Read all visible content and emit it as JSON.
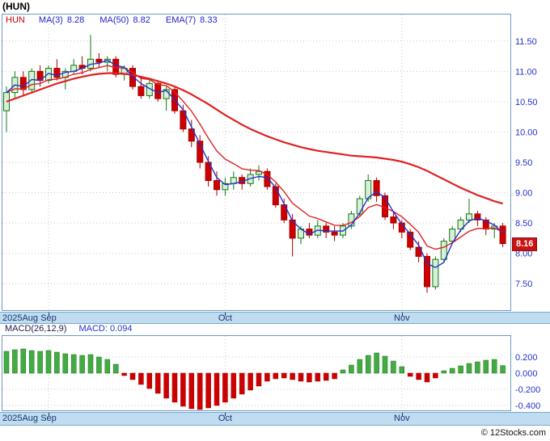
{
  "header": {
    "symbol_title": "(HUN)"
  },
  "legend": {
    "symbol": "HUN",
    "items": [
      {
        "label": "MA(3)",
        "value": "8.28"
      },
      {
        "label": "MA(50)",
        "value": "8.82"
      },
      {
        "label": "EMA(7)",
        "value": "8.33"
      }
    ]
  },
  "price_badge": {
    "value": "8.16"
  },
  "macd_header": {
    "title": "MACD(26,12,9)",
    "value_text": "MACD: 0.094"
  },
  "footer": {
    "credit": "© 12Stocks.com"
  },
  "colors": {
    "frame": "#6f9cc0",
    "grid": "#c8c8c8",
    "axis_text": "#2233cc",
    "band_bg": "#bfdcf0",
    "band_text": "#14366e",
    "up_stroke": "#117711",
    "up_fill": "#d8efd8",
    "down_stroke": "#aa0000",
    "down_fill": "#cc0000",
    "ma3": "#2233cc",
    "ema7": "#dd2222",
    "ma50": "#e02020",
    "macd_up": "#44aa44",
    "macd_down": "#cc0000",
    "badge_bg": "#cc1111"
  },
  "chart_data": {
    "type": "candlestick",
    "symbol": "HUN",
    "panels": [
      "price",
      "macd"
    ],
    "x_axis": {
      "labels": [
        {
          "text": "2025Aug",
          "index": 0,
          "align": "left"
        },
        {
          "text": "Sep",
          "index": 5,
          "tick": true,
          "grid": true
        },
        {
          "text": "Oct",
          "index": 26,
          "tick": true,
          "grid": true
        },
        {
          "text": "Nov",
          "index": 47,
          "tick": true,
          "grid": true
        }
      ]
    },
    "price": {
      "ylim": [
        7.05,
        11.95
      ],
      "ticks": [
        11.5,
        11.0,
        10.5,
        10.0,
        9.5,
        9.0,
        8.5,
        8.0,
        7.5
      ],
      "last_close": 8.16,
      "candles": [
        [
          10.35,
          10.75,
          10.0,
          10.65
        ],
        [
          10.65,
          11.0,
          10.55,
          10.9
        ],
        [
          10.9,
          11.0,
          10.6,
          10.7
        ],
        [
          10.7,
          11.05,
          10.65,
          11.0
        ],
        [
          11.0,
          11.1,
          10.75,
          10.85
        ],
        [
          10.85,
          11.1,
          10.8,
          11.05
        ],
        [
          11.05,
          11.2,
          10.85,
          10.9
        ],
        [
          10.9,
          11.05,
          10.7,
          11.0
        ],
        [
          11.0,
          11.2,
          10.95,
          11.1
        ],
        [
          11.1,
          11.25,
          10.95,
          11.05
        ],
        [
          11.05,
          11.6,
          11.0,
          11.2
        ],
        [
          11.2,
          11.3,
          11.05,
          11.15
        ],
        [
          11.15,
          11.25,
          11.0,
          11.2
        ],
        [
          11.2,
          11.25,
          10.9,
          10.95
        ],
        [
          10.95,
          11.1,
          10.85,
          11.05
        ],
        [
          11.05,
          11.1,
          10.7,
          10.75
        ],
        [
          10.75,
          10.9,
          10.55,
          10.6
        ],
        [
          10.6,
          10.85,
          10.55,
          10.8
        ],
        [
          10.8,
          10.85,
          10.5,
          10.55
        ],
        [
          10.55,
          10.75,
          10.35,
          10.7
        ],
        [
          10.7,
          10.75,
          10.3,
          10.35
        ],
        [
          10.35,
          10.45,
          10.0,
          10.05
        ],
        [
          10.05,
          10.2,
          9.75,
          9.85
        ],
        [
          9.85,
          9.95,
          9.4,
          9.5
        ],
        [
          9.5,
          9.6,
          9.1,
          9.2
        ],
        [
          9.2,
          9.35,
          8.95,
          9.05
        ],
        [
          9.05,
          9.25,
          8.95,
          9.15
        ],
        [
          9.15,
          9.35,
          9.05,
          9.25
        ],
        [
          9.25,
          9.3,
          9.05,
          9.15
        ],
        [
          9.15,
          9.4,
          9.1,
          9.3
        ],
        [
          9.3,
          9.45,
          9.2,
          9.35
        ],
        [
          9.35,
          9.4,
          9.05,
          9.1
        ],
        [
          9.1,
          9.15,
          8.75,
          8.8
        ],
        [
          8.8,
          8.9,
          8.5,
          8.55
        ],
        [
          8.55,
          8.65,
          7.95,
          8.25
        ],
        [
          8.25,
          8.45,
          8.15,
          8.4
        ],
        [
          8.4,
          8.5,
          8.25,
          8.3
        ],
        [
          8.3,
          8.55,
          8.25,
          8.45
        ],
        [
          8.45,
          8.5,
          8.25,
          8.35
        ],
        [
          8.35,
          8.45,
          8.2,
          8.3
        ],
        [
          8.3,
          8.5,
          8.25,
          8.45
        ],
        [
          8.45,
          8.7,
          8.4,
          8.65
        ],
        [
          8.65,
          8.95,
          8.6,
          8.9
        ],
        [
          8.9,
          9.3,
          8.85,
          9.2
        ],
        [
          9.2,
          9.25,
          8.85,
          8.95
        ],
        [
          8.95,
          9.0,
          8.55,
          8.6
        ],
        [
          8.6,
          8.7,
          8.4,
          8.5
        ],
        [
          8.5,
          8.55,
          8.25,
          8.35
        ],
        [
          8.35,
          8.4,
          8.05,
          8.1
        ],
        [
          8.1,
          8.2,
          7.85,
          7.95
        ],
        [
          7.95,
          8.0,
          7.35,
          7.45
        ],
        [
          7.45,
          7.95,
          7.4,
          7.9
        ],
        [
          7.9,
          8.25,
          7.85,
          8.2
        ],
        [
          8.2,
          8.45,
          8.15,
          8.4
        ],
        [
          8.4,
          8.6,
          8.35,
          8.55
        ],
        [
          8.55,
          8.9,
          8.5,
          8.65
        ],
        [
          8.65,
          8.7,
          8.45,
          8.55
        ],
        [
          8.55,
          8.6,
          8.3,
          8.4
        ],
        [
          8.4,
          8.5,
          8.25,
          8.45
        ],
        [
          8.45,
          8.5,
          8.1,
          8.16
        ]
      ],
      "ma50": [
        10.5,
        10.55,
        10.6,
        10.65,
        10.7,
        10.75,
        10.8,
        10.84,
        10.88,
        10.91,
        10.94,
        10.96,
        10.97,
        10.97,
        10.96,
        10.94,
        10.91,
        10.88,
        10.84,
        10.8,
        10.75,
        10.69,
        10.62,
        10.54,
        10.46,
        10.37,
        10.28,
        10.2,
        10.12,
        10.05,
        9.99,
        9.93,
        9.88,
        9.83,
        9.79,
        9.75,
        9.72,
        9.69,
        9.67,
        9.65,
        9.63,
        9.61,
        9.6,
        9.59,
        9.58,
        9.56,
        9.54,
        9.51,
        9.47,
        9.42,
        9.36,
        9.29,
        9.22,
        9.15,
        9.08,
        9.02,
        8.96,
        8.91,
        8.86,
        8.82
      ],
      "overlay_values": {
        "ma3_last": 8.28,
        "ma50_last": 8.82,
        "ema7_last": 8.33
      }
    },
    "macd": {
      "params": "26,12,9",
      "last": 0.094,
      "ticks": [
        0.2,
        0.0,
        -0.2,
        -0.4
      ],
      "values": [
        0.27,
        0.29,
        0.3,
        0.28,
        0.27,
        0.28,
        0.26,
        0.24,
        0.23,
        0.22,
        0.23,
        0.2,
        0.17,
        0.11,
        -0.03,
        -0.08,
        -0.14,
        -0.19,
        -0.25,
        -0.31,
        -0.36,
        -0.41,
        -0.44,
        -0.45,
        -0.43,
        -0.4,
        -0.36,
        -0.31,
        -0.26,
        -0.21,
        -0.16,
        -0.1,
        -0.07,
        -0.06,
        -0.08,
        -0.1,
        -0.11,
        -0.1,
        -0.09,
        -0.07,
        0.04,
        0.1,
        0.17,
        0.22,
        0.25,
        0.21,
        0.15,
        0.08,
        -0.04,
        -0.08,
        -0.11,
        -0.06,
        0.03,
        0.06,
        0.09,
        0.12,
        0.14,
        0.16,
        0.17,
        0.094
      ]
    }
  }
}
